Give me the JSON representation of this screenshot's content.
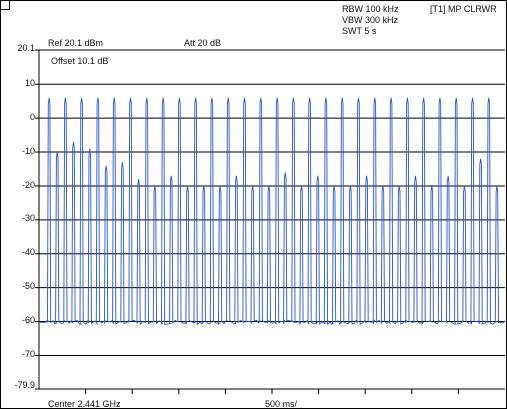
{
  "header": {
    "rbw": "RBW 100 kHz",
    "vbw": "VBW 300 kHz",
    "swt": "SWT 5 s",
    "trace": "[T1] MP CLRWR",
    "ref": "Ref 20.1 dBm",
    "att": "Att  20 dB",
    "offset": "Offset 10.1 dB"
  },
  "footer": {
    "center": "Center 2.441 GHz",
    "span": "500 ms/"
  },
  "colors": {
    "trace": "#2b54c8",
    "grid": "#000000",
    "background": "#ffffff"
  },
  "chart_data": {
    "type": "line",
    "title": "",
    "xlabel": "",
    "ylabel": "",
    "ylim": [
      -79.9,
      20.1
    ],
    "y_tick_labels": [
      "20.1",
      "10",
      "0",
      "-10",
      "-20",
      "-30",
      "-40",
      "-50",
      "-60",
      "-70",
      "-79.9"
    ],
    "y_ticks": [
      20.1,
      10,
      0,
      -10,
      -20,
      -30,
      -40,
      -50,
      -60,
      -70,
      -79.9
    ],
    "x_divisions": 10,
    "x_unit_per_div": "500 ms/",
    "grid": "horizontal",
    "series": [
      {
        "trace": "T1",
        "pulse_count": 56,
        "peak_levels_dBm": [
          6,
          -10,
          6,
          -7,
          6,
          -9,
          6,
          -14,
          6,
          -13,
          6,
          -18,
          6,
          -20,
          6,
          -17,
          6,
          -20,
          6,
          -20,
          6,
          -20,
          6,
          -17,
          6,
          -20,
          6,
          -20,
          6,
          -16,
          6,
          -20,
          6,
          -17,
          6,
          -20,
          6,
          -20,
          6,
          -17,
          6,
          -20,
          6,
          -20,
          6,
          -17,
          6,
          -20,
          6,
          -17,
          6,
          -20,
          6,
          -12,
          6,
          -20
        ],
        "floor_dBm": -60
      }
    ]
  }
}
